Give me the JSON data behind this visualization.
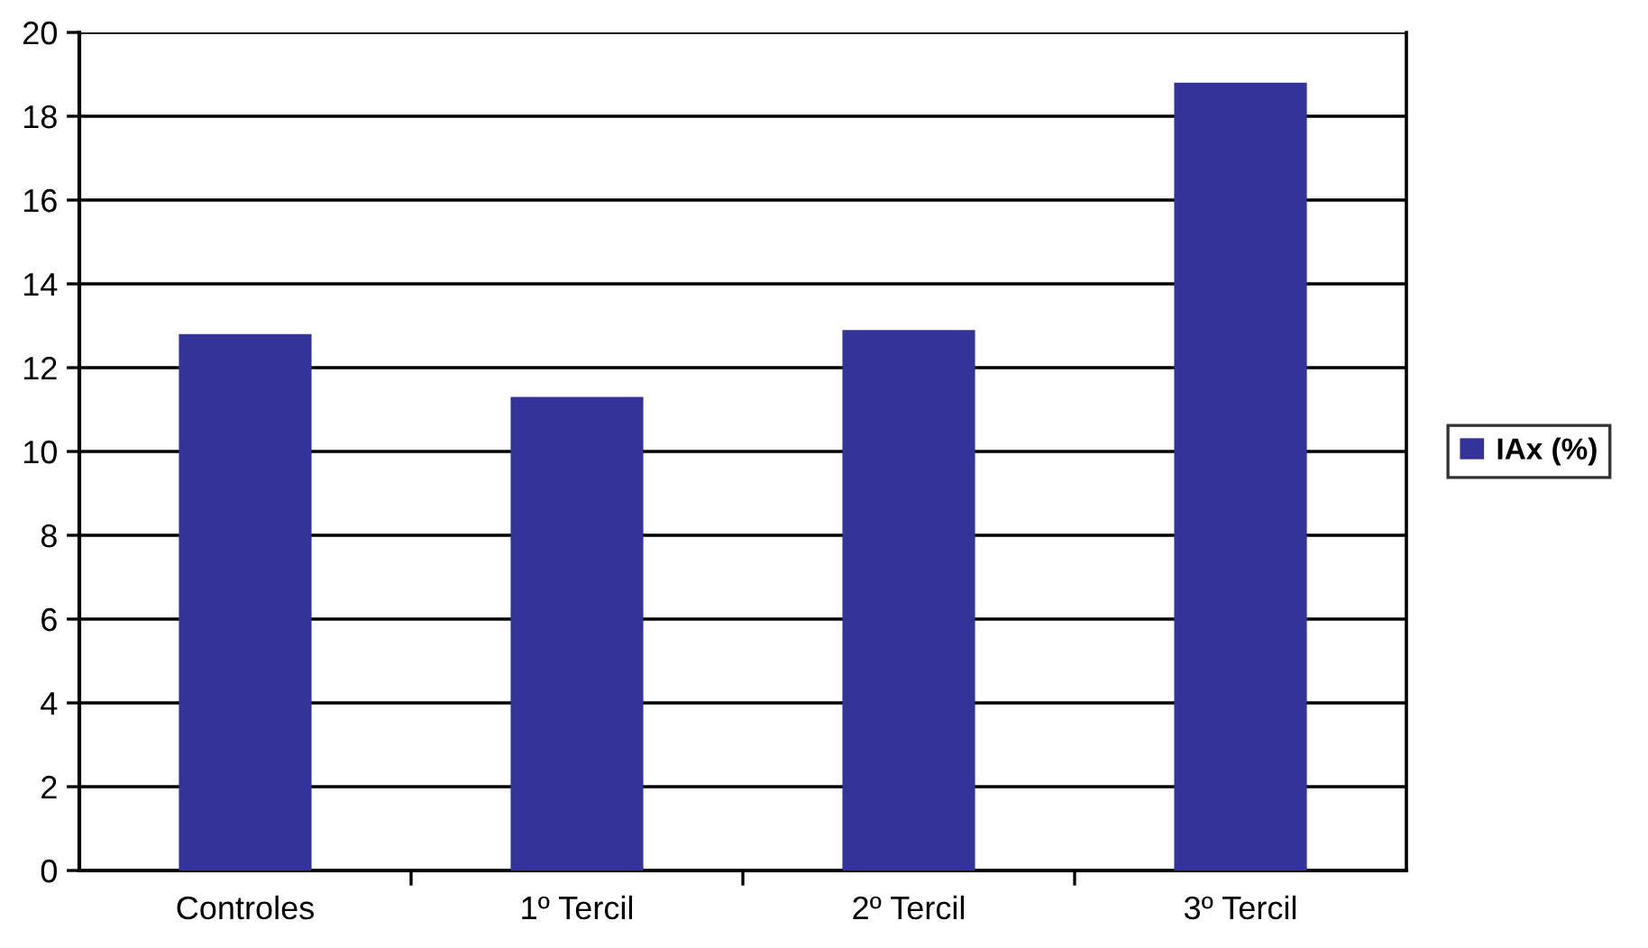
{
  "chart_data": {
    "type": "bar",
    "categories": [
      "Controles",
      "1º Tercil",
      "2º Tercil",
      "3º Tercil"
    ],
    "series": [
      {
        "name": "IAx (%)",
        "color": "#333399",
        "values": [
          12.8,
          11.3,
          12.9,
          18.8
        ]
      }
    ],
    "ylim": [
      0,
      20
    ],
    "yticks": [
      0,
      2,
      4,
      6,
      8,
      10,
      12,
      14,
      16,
      18,
      20
    ],
    "grid": "y",
    "legend": "right"
  }
}
